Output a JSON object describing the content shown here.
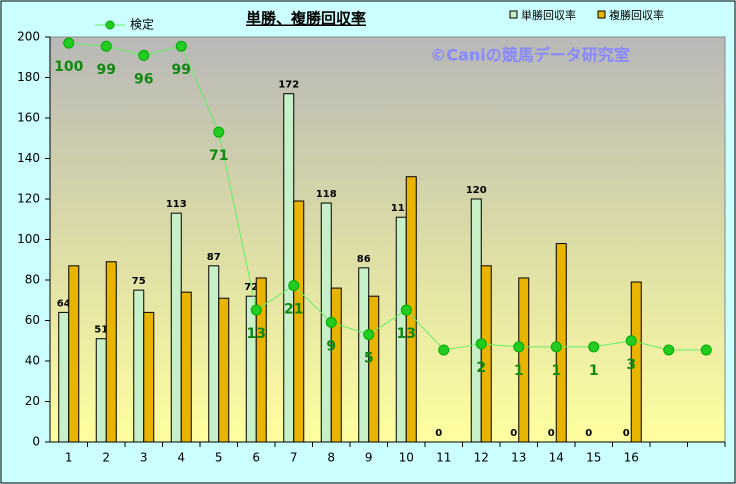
{
  "chart_data": {
    "type": "bar",
    "title": "単勝、複勝回収率",
    "annotation": "©Caniの競馬データ研究室",
    "categories": [
      "1",
      "2",
      "3",
      "4",
      "5",
      "6",
      "7",
      "8",
      "9",
      "10",
      "11",
      "12",
      "13",
      "14",
      "15",
      "16",
      null,
      null
    ],
    "ylim": [
      0,
      200
    ],
    "yticks": [
      0,
      20,
      40,
      60,
      80,
      100,
      120,
      140,
      160,
      180,
      200
    ],
    "y2lim": [
      -30,
      102
    ],
    "grid": false,
    "series": [
      {
        "name": "単勝回収率",
        "color": "#c8f0c8",
        "data_labels": true,
        "values": [
          64,
          51,
          75,
          113,
          87,
          72,
          172,
          118,
          86,
          111,
          0,
          120,
          0,
          0,
          0,
          0,
          null,
          null
        ]
      },
      {
        "name": "複勝回収率",
        "color": "#e8b400",
        "values": [
          87,
          89,
          64,
          74,
          71,
          81,
          119,
          76,
          72,
          131,
          0,
          87,
          81,
          98,
          0,
          79,
          null,
          null
        ]
      },
      {
        "name": "検定",
        "type": "line",
        "axis": "y2",
        "color": "#22cc22",
        "values": [
          100,
          99,
          96,
          99,
          71,
          13,
          21,
          9,
          5,
          13,
          0,
          2,
          1,
          1,
          1,
          3,
          0,
          0
        ],
        "value_labels": [
          "100",
          "99",
          "96",
          "99",
          "71",
          "13",
          "21",
          "9",
          "5",
          "13",
          null,
          "2",
          "1",
          "1",
          "1",
          "3",
          null,
          null
        ]
      }
    ]
  }
}
